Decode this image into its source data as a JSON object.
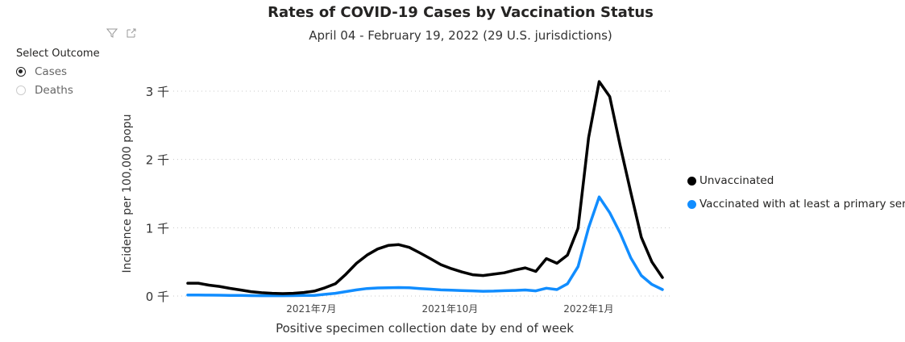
{
  "header": {
    "title": "Rates of COVID-19 Cases by Vaccination Status",
    "subtitle": "April 04 - February 19, 2022 (29 U.S. jurisdictions)"
  },
  "visual_icons": [
    "filter-icon",
    "focus-mode-icon"
  ],
  "slicer": {
    "title": "Select Outcome",
    "options": [
      {
        "label": "Cases",
        "selected": true
      },
      {
        "label": "Deaths",
        "selected": false
      }
    ]
  },
  "chart_data": {
    "type": "line",
    "title": "Rates of COVID-19 Cases by Vaccination Status",
    "xlabel": "Positive specimen collection date by end of week",
    "ylabel": "Incidence per 100,000 popu",
    "ylim": [
      0,
      3000
    ],
    "y_ticks": [
      {
        "value": 0,
        "label": "0 千"
      },
      {
        "value": 1000,
        "label": "1 千"
      },
      {
        "value": 2000,
        "label": "2 千"
      },
      {
        "value": 3000,
        "label": "3 千"
      }
    ],
    "x_ticks": [
      {
        "date": "2021-07-01",
        "label": "2021年7月"
      },
      {
        "date": "2021-10-01",
        "label": "2021年10月"
      },
      {
        "date": "2022-01-01",
        "label": "2022年1月"
      }
    ],
    "grid": "horizontal dotted",
    "legend_position": "right",
    "x": [
      "2021-04-10",
      "2021-04-17",
      "2021-04-24",
      "2021-05-01",
      "2021-05-08",
      "2021-05-15",
      "2021-05-22",
      "2021-05-29",
      "2021-06-05",
      "2021-06-12",
      "2021-06-19",
      "2021-06-26",
      "2021-07-03",
      "2021-07-10",
      "2021-07-17",
      "2021-07-24",
      "2021-07-31",
      "2021-08-07",
      "2021-08-14",
      "2021-08-21",
      "2021-08-28",
      "2021-09-04",
      "2021-09-11",
      "2021-09-18",
      "2021-09-25",
      "2021-10-02",
      "2021-10-09",
      "2021-10-16",
      "2021-10-23",
      "2021-10-30",
      "2021-11-06",
      "2021-11-13",
      "2021-11-20",
      "2021-11-27",
      "2021-12-04",
      "2021-12-11",
      "2021-12-18",
      "2021-12-25",
      "2022-01-01",
      "2022-01-08",
      "2022-01-15",
      "2022-01-22",
      "2022-01-29",
      "2022-02-05",
      "2022-02-12",
      "2022-02-19"
    ],
    "series": [
      {
        "name": "Unvaccinated",
        "color": "#000000",
        "values": [
          188,
          188,
          160,
          140,
          112,
          88,
          64,
          48,
          40,
          36,
          40,
          52,
          72,
          120,
          180,
          320,
          480,
          600,
          688,
          740,
          752,
          712,
          632,
          548,
          460,
          400,
          352,
          312,
          300,
          320,
          340,
          380,
          412,
          360,
          548,
          480,
          600,
          992,
          2320,
          3140,
          2920,
          2200,
          1520,
          860,
          500,
          272
        ]
      },
      {
        "name": "Vaccinated with at least a primary series",
        "color": "#118DFF",
        "values": [
          15,
          14,
          13,
          12,
          10,
          8,
          6,
          5,
          5,
          5,
          6,
          8,
          10,
          25,
          40,
          65,
          90,
          110,
          118,
          122,
          124,
          120,
          110,
          100,
          90,
          85,
          80,
          75,
          70,
          72,
          78,
          82,
          88,
          75,
          115,
          95,
          180,
          430,
          1000,
          1450,
          1220,
          920,
          560,
          300,
          170,
          95
        ]
      }
    ]
  }
}
